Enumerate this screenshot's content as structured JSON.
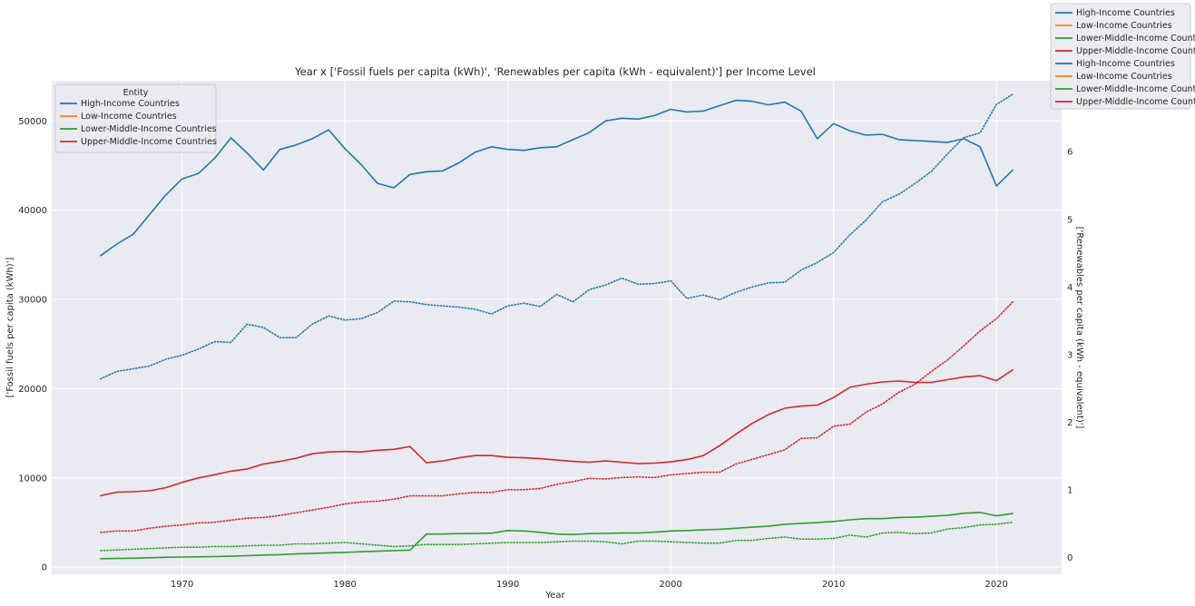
{
  "chart_data": {
    "type": "line",
    "title": "Year x ['Fossil fuels per capita (kWh)', 'Renewables per capita (kWh - equivalent)'] per Income Level",
    "xlabel": "Year",
    "ylabel_left": "['Fossil fuels per capita (kWh)']",
    "ylabel_right": "['Renewables per capita (kWh - equivalent)']",
    "x_ticks": [
      1970,
      1980,
      1990,
      2000,
      2010,
      2020
    ],
    "y_left_ticks": [
      0,
      10000,
      20000,
      30000,
      40000,
      50000
    ],
    "y_right_ticks": [
      0,
      1,
      2,
      3,
      4,
      5,
      6
    ],
    "xlim": [
      1962,
      2024
    ],
    "ylim_left": [
      -800,
      54500
    ],
    "ylim_right": [
      -0.25,
      7.05
    ],
    "grid": true,
    "legend_inner": {
      "title": "Entity",
      "placement": "upper-left",
      "entries": [
        {
          "label": "High-Income Countries",
          "color": "#1f77b4"
        },
        {
          "label": "Low-Income Countries",
          "color": "#ff7f0e"
        },
        {
          "label": "Lower-Middle-Income Countries",
          "color": "#2ca02c"
        },
        {
          "label": "Upper-Middle-Income Countries",
          "color": "#d62728"
        }
      ]
    },
    "legend_outer": {
      "placement": "top-right outside",
      "entries": [
        {
          "label": "High-Income Countries",
          "color": "#1f77b4"
        },
        {
          "label": "Low-Income Countries",
          "color": "#ff7f0e"
        },
        {
          "label": "Lower-Middle-Income Countries",
          "color": "#2ca02c"
        },
        {
          "label": "Upper-Middle-Income Countries",
          "color": "#d62728"
        },
        {
          "label": "High-Income Countries",
          "color": "#1f77b4"
        },
        {
          "label": "Low-Income Countries",
          "color": "#ff7f0e"
        },
        {
          "label": "Lower-Middle-Income Countries",
          "color": "#2ca02c"
        },
        {
          "label": "Upper-Middle-Income Countries",
          "color": "#d62728"
        }
      ]
    },
    "fossil_series": [
      {
        "name": "High-Income Countries",
        "color": "#1f77b4",
        "x": [
          1965,
          1966,
          1967,
          1968,
          1969,
          1970,
          1971,
          1972,
          1973,
          1974,
          1975,
          1976,
          1977,
          1978,
          1979,
          1980,
          1981,
          1982,
          1983,
          1984,
          1985,
          1986,
          1987,
          1988,
          1989,
          1990,
          1991,
          1992,
          1993,
          1994,
          1995,
          1996,
          1997,
          1998,
          1999,
          2000,
          2001,
          2002,
          2003,
          2004,
          2005,
          2006,
          2007,
          2008,
          2009,
          2010,
          2011,
          2012,
          2013,
          2014,
          2015,
          2016,
          2017,
          2018,
          2019,
          2020,
          2021
        ],
        "y": [
          34900,
          36200,
          37300,
          39500,
          41700,
          43500,
          44100,
          45800,
          48100,
          46400,
          44500,
          46800,
          47300,
          48000,
          49000,
          46900,
          45100,
          43000,
          42500,
          44000,
          44300,
          44400,
          45300,
          46500,
          47100,
          46800,
          46700,
          47000,
          47100,
          47900,
          48700,
          50000,
          50300,
          50200,
          50600,
          51300,
          51000,
          51100,
          51700,
          52300,
          52200,
          51800,
          52100,
          51100,
          48000,
          49700,
          48900,
          48400,
          48500,
          47900,
          47800,
          47700,
          47600,
          48000,
          47100,
          42700,
          44500
        ]
      },
      {
        "name": "Lower-Middle-Income Countries",
        "color": "#2ca02c",
        "x": [
          1965,
          1966,
          1967,
          1968,
          1969,
          1970,
          1971,
          1972,
          1973,
          1974,
          1975,
          1976,
          1977,
          1978,
          1979,
          1980,
          1981,
          1982,
          1983,
          1984,
          1985,
          1986,
          1987,
          1988,
          1989,
          1990,
          1991,
          1992,
          1993,
          1994,
          1995,
          1996,
          1997,
          1998,
          1999,
          2000,
          2001,
          2002,
          2003,
          2004,
          2005,
          2006,
          2007,
          2008,
          2009,
          2010,
          2011,
          2012,
          2013,
          2014,
          2015,
          2016,
          2017,
          2018,
          2019,
          2020,
          2021
        ],
        "y": [
          950,
          970,
          1000,
          1050,
          1100,
          1130,
          1150,
          1180,
          1220,
          1270,
          1350,
          1400,
          1480,
          1530,
          1600,
          1650,
          1720,
          1780,
          1850,
          1900,
          3700,
          3700,
          3750,
          3760,
          3800,
          4100,
          4050,
          3900,
          3700,
          3650,
          3750,
          3780,
          3820,
          3830,
          3920,
          4050,
          4100,
          4170,
          4240,
          4350,
          4480,
          4580,
          4800,
          4900,
          4980,
          5120,
          5300,
          5430,
          5430,
          5560,
          5590,
          5700,
          5800,
          6040,
          6120,
          5750,
          6000
        ]
      },
      {
        "name": "Upper-Middle-Income Countries",
        "color": "#d62728",
        "x": [
          1965,
          1966,
          1967,
          1968,
          1969,
          1970,
          1971,
          1972,
          1973,
          1974,
          1975,
          1976,
          1977,
          1978,
          1979,
          1980,
          1981,
          1982,
          1983,
          1984,
          1985,
          1986,
          1987,
          1988,
          1989,
          1990,
          1991,
          1992,
          1993,
          1994,
          1995,
          1996,
          1997,
          1998,
          1999,
          2000,
          2001,
          2002,
          2003,
          2004,
          2005,
          2006,
          2007,
          2008,
          2009,
          2010,
          2011,
          2012,
          2013,
          2014,
          2015,
          2016,
          2017,
          2018,
          2019,
          2020,
          2021
        ],
        "y": [
          8000,
          8400,
          8450,
          8550,
          8900,
          9500,
          10000,
          10350,
          10750,
          11000,
          11550,
          11850,
          12200,
          12700,
          12900,
          12950,
          12900,
          13100,
          13200,
          13500,
          11700,
          11900,
          12250,
          12500,
          12500,
          12300,
          12250,
          12150,
          12000,
          11850,
          11750,
          11900,
          11750,
          11600,
          11650,
          11800,
          12050,
          12500,
          13600,
          14900,
          16100,
          17100,
          17800,
          18050,
          18150,
          19000,
          20150,
          20500,
          20750,
          20850,
          20700,
          20700,
          21000,
          21300,
          21450,
          20900,
          22100
        ]
      }
    ],
    "renewables_series": [
      {
        "name": "High-Income Countries",
        "color": "#1f77b4",
        "x": [
          1965,
          1966,
          1967,
          1968,
          1969,
          1970,
          1971,
          1972,
          1973,
          1974,
          1975,
          1976,
          1977,
          1978,
          1979,
          1980,
          1981,
          1982,
          1983,
          1984,
          1985,
          1986,
          1987,
          1988,
          1989,
          1990,
          1991,
          1992,
          1993,
          1994,
          1995,
          1996,
          1997,
          1998,
          1999,
          2000,
          2001,
          2002,
          2003,
          2004,
          2005,
          2006,
          2007,
          2008,
          2009,
          2010,
          2011,
          2012,
          2013,
          2014,
          2015,
          2016,
          2017,
          2018,
          2019,
          2020,
          2021
        ],
        "y": [
          2.64,
          2.75,
          2.79,
          2.83,
          2.93,
          2.99,
          3.08,
          3.19,
          3.18,
          3.45,
          3.4,
          3.25,
          3.25,
          3.45,
          3.57,
          3.51,
          3.53,
          3.62,
          3.79,
          3.78,
          3.74,
          3.72,
          3.7,
          3.67,
          3.6,
          3.72,
          3.76,
          3.71,
          3.89,
          3.78,
          3.96,
          4.03,
          4.13,
          4.04,
          4.05,
          4.09,
          3.83,
          3.88,
          3.81,
          3.92,
          4.0,
          4.06,
          4.07,
          4.25,
          4.36,
          4.51,
          4.77,
          4.99,
          5.26,
          5.37,
          5.53,
          5.71,
          5.97,
          6.21,
          6.28,
          6.7,
          6.85
        ]
      },
      {
        "name": "Lower-Middle-Income Countries",
        "color": "#2ca02c",
        "x": [
          1965,
          1966,
          1967,
          1968,
          1969,
          1970,
          1971,
          1972,
          1973,
          1974,
          1975,
          1976,
          1977,
          1978,
          1979,
          1980,
          1981,
          1982,
          1983,
          1984,
          1985,
          1986,
          1987,
          1988,
          1989,
          1990,
          1991,
          1992,
          1993,
          1994,
          1995,
          1996,
          1997,
          1998,
          1999,
          2000,
          2001,
          2002,
          2003,
          2004,
          2005,
          2006,
          2007,
          2008,
          2009,
          2010,
          2011,
          2012,
          2013,
          2014,
          2015,
          2016,
          2017,
          2018,
          2019,
          2020,
          2021
        ],
        "y": [
          0.1,
          0.11,
          0.12,
          0.13,
          0.14,
          0.15,
          0.15,
          0.16,
          0.16,
          0.17,
          0.18,
          0.18,
          0.2,
          0.2,
          0.21,
          0.22,
          0.2,
          0.18,
          0.16,
          0.17,
          0.19,
          0.19,
          0.19,
          0.2,
          0.21,
          0.22,
          0.22,
          0.22,
          0.23,
          0.24,
          0.24,
          0.23,
          0.2,
          0.24,
          0.24,
          0.23,
          0.22,
          0.21,
          0.21,
          0.25,
          0.25,
          0.28,
          0.3,
          0.27,
          0.27,
          0.28,
          0.33,
          0.3,
          0.36,
          0.37,
          0.35,
          0.36,
          0.42,
          0.44,
          0.48,
          0.49,
          0.52
        ]
      },
      {
        "name": "Upper-Middle-Income Countries",
        "color": "#d62728",
        "x": [
          1965,
          1966,
          1967,
          1968,
          1969,
          1970,
          1971,
          1972,
          1973,
          1974,
          1975,
          1976,
          1977,
          1978,
          1979,
          1980,
          1981,
          1982,
          1983,
          1984,
          1985,
          1986,
          1987,
          1988,
          1989,
          1990,
          1991,
          1992,
          1993,
          1994,
          1995,
          1996,
          1997,
          1998,
          1999,
          2000,
          2001,
          2002,
          2003,
          2004,
          2005,
          2006,
          2007,
          2008,
          2009,
          2010,
          2011,
          2012,
          2013,
          2014,
          2015,
          2016,
          2017,
          2018,
          2019,
          2020,
          2021
        ],
        "y": [
          0.37,
          0.39,
          0.39,
          0.43,
          0.46,
          0.48,
          0.51,
          0.52,
          0.55,
          0.58,
          0.59,
          0.62,
          0.66,
          0.7,
          0.74,
          0.79,
          0.82,
          0.83,
          0.86,
          0.91,
          0.91,
          0.91,
          0.94,
          0.96,
          0.96,
          1.0,
          1.0,
          1.02,
          1.08,
          1.12,
          1.17,
          1.16,
          1.18,
          1.19,
          1.18,
          1.22,
          1.24,
          1.26,
          1.26,
          1.38,
          1.45,
          1.52,
          1.59,
          1.76,
          1.77,
          1.94,
          1.97,
          2.15,
          2.27,
          2.44,
          2.56,
          2.75,
          2.92,
          3.13,
          3.35,
          3.53,
          3.78
        ]
      }
    ]
  }
}
